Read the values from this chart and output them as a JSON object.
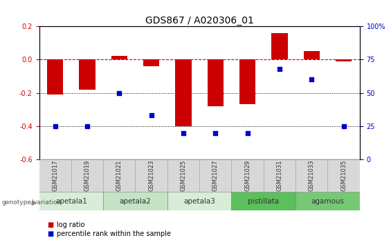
{
  "title": "GDS867 / A020306_01",
  "samples": [
    "GSM21017",
    "GSM21019",
    "GSM21021",
    "GSM21023",
    "GSM21025",
    "GSM21027",
    "GSM21029",
    "GSM21031",
    "GSM21033",
    "GSM21035"
  ],
  "log_ratio": [
    -0.21,
    -0.18,
    0.02,
    -0.04,
    -0.4,
    -0.28,
    -0.27,
    0.16,
    0.05,
    -0.01
  ],
  "percentile_rank": [
    25,
    25,
    50,
    33,
    20,
    20,
    20,
    68,
    60,
    25
  ],
  "groups": [
    {
      "label": "apetala1",
      "start": 0,
      "end": 1,
      "color": "#d8edd8"
    },
    {
      "label": "apetala2",
      "start": 2,
      "end": 3,
      "color": "#c5e3c5"
    },
    {
      "label": "apetala3",
      "start": 4,
      "end": 5,
      "color": "#d8edd8"
    },
    {
      "label": "pistillata",
      "start": 6,
      "end": 7,
      "color": "#5bbf5b"
    },
    {
      "label": "agamous",
      "start": 8,
      "end": 9,
      "color": "#75c975"
    }
  ],
  "ylim_left": [
    -0.6,
    0.2
  ],
  "ylim_right": [
    0,
    100
  ],
  "yticks_left": [
    -0.6,
    -0.4,
    -0.2,
    0.0,
    0.2
  ],
  "yticks_right": [
    0,
    25,
    50,
    75,
    100
  ],
  "bar_color": "#cc0000",
  "dot_color": "#0000cc",
  "hline_color": "#cc0000",
  "grid_levels": [
    -0.2,
    -0.4
  ],
  "bar_width": 0.5,
  "dot_size": 25,
  "title_fontsize": 10,
  "tick_fontsize": 7,
  "label_fontsize": 7,
  "group_label_fontsize": 7.5,
  "sample_fontsize": 6
}
